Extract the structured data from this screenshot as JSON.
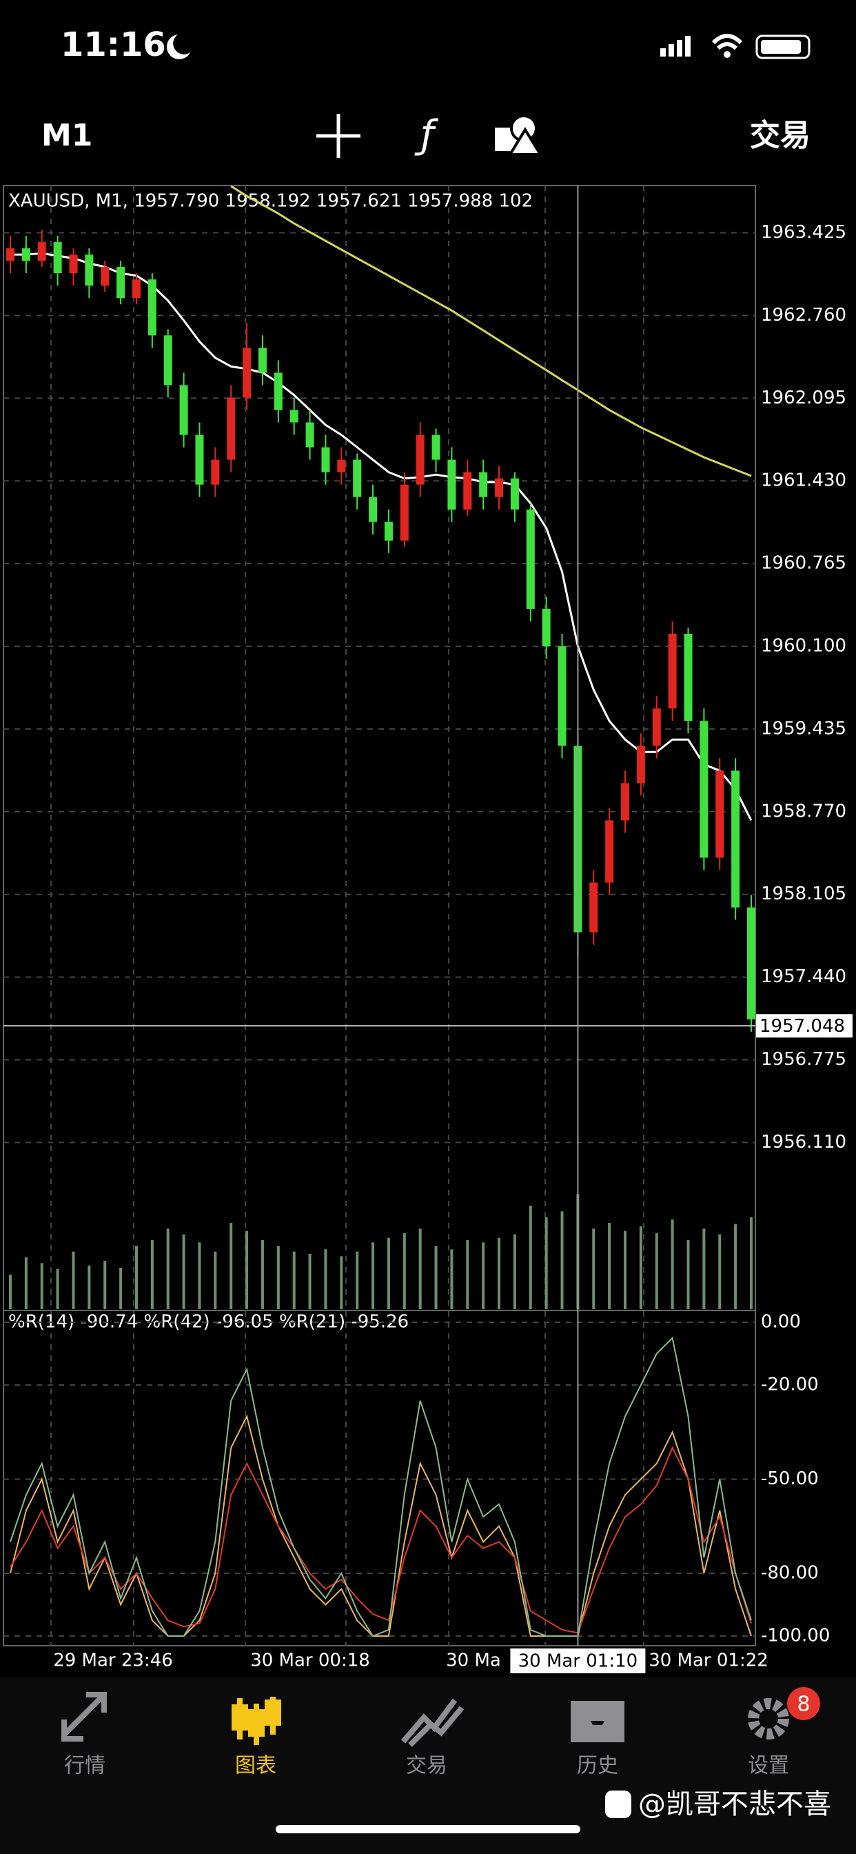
{
  "status_bar": {
    "time": "11:16"
  },
  "toolbar": {
    "timeframe": "M1",
    "trade": "交易"
  },
  "chart": {
    "type": "candlestick",
    "header": "XAUUSD, M1, 1957.790 1958.192 1957.621 1957.988 102",
    "up_color": "#e0261f",
    "down_color": "#3fe03f",
    "candles": [
      [
        1963.2,
        1963.4,
        1963.1,
        1963.3
      ],
      [
        1963.3,
        1963.4,
        1963.1,
        1963.2
      ],
      [
        1963.2,
        1963.45,
        1963.15,
        1963.35
      ],
      [
        1963.35,
        1963.4,
        1963.0,
        1963.1
      ],
      [
        1963.1,
        1963.3,
        1963.0,
        1963.25
      ],
      [
        1963.25,
        1963.3,
        1962.9,
        1963.0
      ],
      [
        1963.0,
        1963.2,
        1962.95,
        1963.15
      ],
      [
        1963.15,
        1963.2,
        1962.85,
        1962.9
      ],
      [
        1962.9,
        1963.1,
        1962.85,
        1963.05
      ],
      [
        1963.05,
        1963.1,
        1962.5,
        1962.6
      ],
      [
        1962.6,
        1962.65,
        1962.1,
        1962.2
      ],
      [
        1962.2,
        1962.3,
        1961.7,
        1961.8
      ],
      [
        1961.8,
        1961.9,
        1961.3,
        1961.4
      ],
      [
        1961.4,
        1961.7,
        1961.3,
        1961.6
      ],
      [
        1961.6,
        1962.2,
        1961.5,
        1962.1
      ],
      [
        1962.1,
        1962.7,
        1962.0,
        1962.5
      ],
      [
        1962.5,
        1962.6,
        1962.2,
        1962.3
      ],
      [
        1962.3,
        1962.4,
        1961.9,
        1962.0
      ],
      [
        1962.0,
        1962.1,
        1961.8,
        1961.9
      ],
      [
        1961.9,
        1962.0,
        1961.6,
        1961.7
      ],
      [
        1961.7,
        1961.8,
        1961.4,
        1961.5
      ],
      [
        1961.5,
        1961.7,
        1961.4,
        1961.6
      ],
      [
        1961.6,
        1961.65,
        1961.2,
        1961.3
      ],
      [
        1961.3,
        1961.4,
        1961.0,
        1961.1
      ],
      [
        1961.1,
        1961.2,
        1960.85,
        1960.95
      ],
      [
        1960.95,
        1961.5,
        1960.9,
        1961.4
      ],
      [
        1961.4,
        1961.9,
        1961.3,
        1961.8
      ],
      [
        1961.8,
        1961.85,
        1961.5,
        1961.6
      ],
      [
        1961.6,
        1961.7,
        1961.1,
        1961.2
      ],
      [
        1961.2,
        1961.6,
        1961.15,
        1961.5
      ],
      [
        1961.5,
        1961.6,
        1961.2,
        1961.3
      ],
      [
        1961.3,
        1961.55,
        1961.2,
        1961.45
      ],
      [
        1961.45,
        1961.5,
        1961.1,
        1961.2
      ],
      [
        1961.2,
        1961.25,
        1960.3,
        1960.4
      ],
      [
        1960.4,
        1960.5,
        1960.0,
        1960.1
      ],
      [
        1960.1,
        1960.2,
        1959.2,
        1959.3
      ],
      [
        1959.3,
        1959.4,
        1957.6,
        1957.8
      ],
      [
        1957.8,
        1958.3,
        1957.7,
        1958.2
      ],
      [
        1958.2,
        1958.8,
        1958.1,
        1958.7
      ],
      [
        1958.7,
        1959.1,
        1958.6,
        1959.0
      ],
      [
        1959.0,
        1959.4,
        1958.9,
        1959.3
      ],
      [
        1959.3,
        1959.7,
        1959.2,
        1959.6
      ],
      [
        1959.6,
        1960.3,
        1959.5,
        1960.2
      ],
      [
        1960.2,
        1960.25,
        1959.4,
        1959.5
      ],
      [
        1959.5,
        1959.6,
        1958.3,
        1958.4
      ],
      [
        1958.4,
        1959.2,
        1958.3,
        1959.1
      ],
      [
        1959.1,
        1959.2,
        1957.9,
        1958.0
      ],
      [
        1958.0,
        1958.1,
        1957.0,
        1957.1
      ]
    ],
    "ma_long": {
      "color": "#d4d65a",
      "values": [
        null,
        null,
        null,
        null,
        null,
        null,
        null,
        null,
        null,
        null,
        null,
        null,
        null,
        null,
        1963.8,
        1963.72,
        1963.65,
        1963.58,
        1963.5,
        1963.43,
        1963.36,
        1963.29,
        1963.22,
        1963.15,
        1963.08,
        1963.01,
        1962.94,
        1962.87,
        1962.8,
        1962.72,
        1962.64,
        1962.56,
        1962.48,
        1962.4,
        1962.32,
        1962.24,
        1962.16,
        1962.08,
        1962.0,
        1961.93,
        1961.86,
        1961.8,
        1961.74,
        1961.68,
        1961.62,
        1961.57,
        1961.52,
        1961.47
      ]
    },
    "ma": {
      "color": "#ffffff",
      "values": [
        1963.25,
        1963.25,
        1963.26,
        1963.24,
        1963.22,
        1963.18,
        1963.15,
        1963.1,
        1963.08,
        1963.0,
        1962.88,
        1962.72,
        1962.55,
        1962.42,
        1962.35,
        1962.33,
        1962.3,
        1962.22,
        1962.12,
        1962.0,
        1961.88,
        1961.8,
        1961.7,
        1961.6,
        1961.5,
        1961.45,
        1961.46,
        1961.48,
        1961.46,
        1961.45,
        1961.42,
        1961.42,
        1961.4,
        1961.25,
        1961.05,
        1960.7,
        1960.1,
        1959.75,
        1959.5,
        1959.35,
        1959.25,
        1959.25,
        1959.35,
        1959.35,
        1959.15,
        1959.1,
        1958.95,
        1958.7
      ]
    },
    "volumes": [
      30,
      45,
      40,
      35,
      50,
      38,
      42,
      36,
      55,
      60,
      70,
      65,
      58,
      50,
      75,
      68,
      60,
      55,
      50,
      48,
      52,
      46,
      50,
      58,
      62,
      66,
      70,
      55,
      52,
      60,
      58,
      62,
      65,
      90,
      80,
      85,
      100,
      70,
      75,
      68,
      72,
      66,
      78,
      60,
      70,
      65,
      74,
      80
    ],
    "volume_color": "#6f8f6f",
    "volume_lim": [
      0,
      120
    ],
    "ylim": [
      1954.77,
      1963.805
    ],
    "yticks": [
      1963.425,
      {
        "value": 1962.76,
        "label": "1962.760"
      },
      1962.095,
      {
        "value": 1961.43,
        "label": "1961.430"
      },
      1960.765,
      {
        "value": 1960.1,
        "label": "1960.100"
      },
      1959.435,
      {
        "value": 1958.77,
        "label": "1958.770"
      },
      1958.105,
      {
        "value": 1957.44,
        "label": "1957.440"
      },
      1956.775,
      {
        "value": 1956.11,
        "label": "1956.110"
      }
    ],
    "current_price": 1957.048,
    "x_labels": [
      "29 Mar 23:46",
      "30 Mar 00:18",
      "30 Ma",
      "30 Mar 01:22"
    ],
    "crosshair_time": "30 Mar 01:10",
    "wpr": {
      "header": "%R(14) -90.74 %R(42) -96.05 %R(21) -95.26",
      "ylim": [
        -100,
        0
      ],
      "yticks": [
        {
          "value": 0,
          "label": "0.00"
        },
        {
          "value": -20,
          "label": "-20.00"
        },
        {
          "value": -50,
          "label": "-50.00"
        },
        {
          "value": -80,
          "label": "-80.00"
        },
        {
          "value": -100,
          "label": "-100.00"
        }
      ],
      "series": [
        {
          "color": "#e8b85a",
          "values": [
            -80,
            -60,
            -50,
            -70,
            -60,
            -85,
            -75,
            -90,
            -80,
            -95,
            -100,
            -100,
            -95,
            -80,
            -40,
            -30,
            -50,
            -65,
            -75,
            -85,
            -90,
            -85,
            -95,
            -100,
            -100,
            -70,
            -45,
            -55,
            -75,
            -60,
            -70,
            -65,
            -75,
            -100,
            -100,
            -100,
            -100,
            -80,
            -65,
            -55,
            -50,
            -45,
            -35,
            -50,
            -80,
            -60,
            -85,
            -100
          ]
        },
        {
          "color": "#e03a2a",
          "values": [
            -78,
            -70,
            -60,
            -72,
            -65,
            -80,
            -75,
            -85,
            -80,
            -88,
            -95,
            -97,
            -96,
            -85,
            -55,
            -45,
            -55,
            -65,
            -72,
            -80,
            -85,
            -82,
            -88,
            -93,
            -95,
            -75,
            -60,
            -65,
            -75,
            -68,
            -72,
            -70,
            -75,
            -92,
            -95,
            -98,
            -99,
            -85,
            -72,
            -62,
            -58,
            -52,
            -40,
            -50,
            -70,
            -62,
            -80,
            -96
          ]
        },
        {
          "color": "#8fb88f",
          "values": [
            -70,
            -55,
            -45,
            -65,
            -55,
            -80,
            -70,
            -88,
            -75,
            -92,
            -100,
            -100,
            -92,
            -70,
            -25,
            -15,
            -40,
            -60,
            -72,
            -82,
            -88,
            -80,
            -92,
            -100,
            -98,
            -55,
            -25,
            -40,
            -70,
            -50,
            -62,
            -58,
            -70,
            -98,
            -100,
            -100,
            -100,
            -70,
            -45,
            -30,
            -20,
            -10,
            -5,
            -30,
            -75,
            -50,
            -80,
            -95
          ]
        }
      ]
    }
  },
  "tab_bar": {
    "tabs": [
      "行情",
      "图表",
      "交易",
      "历史",
      "设置"
    ],
    "active": 1,
    "badge": "8"
  },
  "watermark": "@凯哥不悲不喜"
}
